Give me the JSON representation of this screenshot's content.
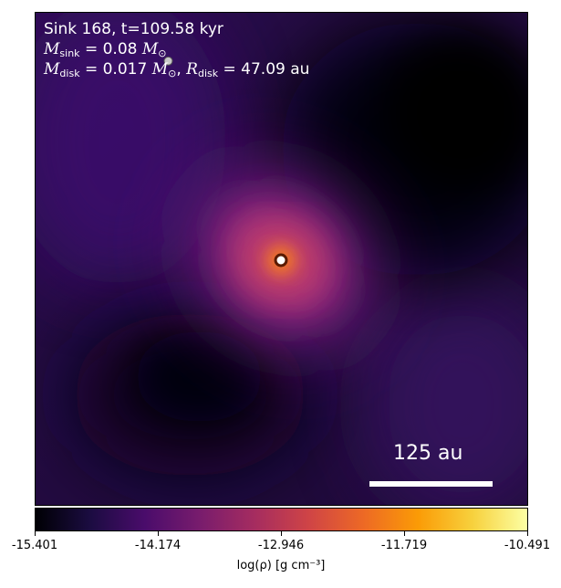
{
  "title": {
    "sink_text": "Sink 168, t=109.58 kyr",
    "m_sink_symbol": "M",
    "m_sink_sub": "sink",
    "m_sink_value": "= 0.08",
    "m_disk_symbol": "M",
    "m_disk_sub": "disk",
    "m_disk_value": "= 0.017",
    "r_disk_symbol": "R",
    "r_disk_sub": "disk",
    "r_disk_value": "= 47.09",
    "solar_mass_unit": "M",
    "solar_sub": "⊙",
    "length_unit": "au"
  },
  "scalebar": {
    "label": "125 au"
  },
  "colorbar": {
    "ticks": [
      "-15.401",
      "-14.174",
      "-12.946",
      "-11.719",
      "-10.491"
    ],
    "label": "log(ρ) [g cm⁻³]",
    "colormap": "plasma-inferno-like",
    "vmin": -15.401,
    "vmax": -10.491
  },
  "colors": {
    "background_dark": "#1a0a2e",
    "core_glow": "#e8602a",
    "sink_marker": "#ffffff"
  }
}
